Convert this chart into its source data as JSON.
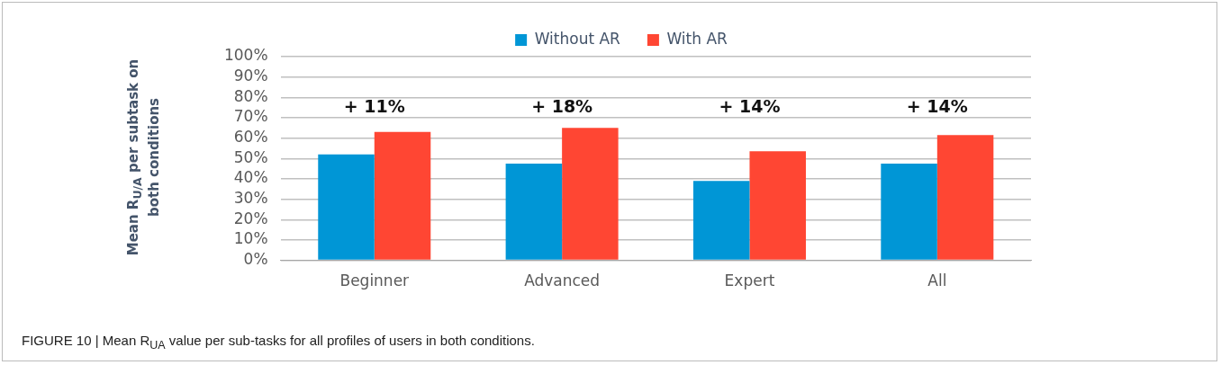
{
  "chart_data": {
    "type": "bar",
    "ylabel": "Mean R$_{U/A}$ per subtask on both conditions",
    "categories": [
      "Beginner",
      "Advanced",
      "Expert",
      "All"
    ],
    "series": [
      {
        "name": "Without AR",
        "color": "#0096d6",
        "values": [
          52,
          47.5,
          39,
          47.5
        ]
      },
      {
        "name": "With AR",
        "color": "#ff4633",
        "values": [
          63,
          65,
          53.5,
          61.5
        ]
      }
    ],
    "ylim": [
      0,
      100
    ],
    "yticks": [
      {
        "value": 0,
        "label": "0%"
      },
      {
        "value": 10,
        "label": "10%"
      },
      {
        "value": 20,
        "label": "20%"
      },
      {
        "value": 30,
        "label": "30%"
      },
      {
        "value": 40,
        "label": "40%"
      },
      {
        "value": 50,
        "label": "50%"
      },
      {
        "value": 60,
        "label": "60%"
      },
      {
        "value": 70,
        "label": "70%"
      },
      {
        "value": 80,
        "label": "80%"
      },
      {
        "value": 90,
        "label": "90%"
      },
      {
        "value": 100,
        "label": "100%"
      }
    ],
    "grid": "y",
    "legend": "top",
    "annotations": [
      "+ 11%",
      "+ 18%",
      "+ 14%",
      "+ 14%",
      "FIGURE 10 | Mean R$_{UA}$ value per sub-tasks for all profiles of users in both conditions."
    ]
  }
}
